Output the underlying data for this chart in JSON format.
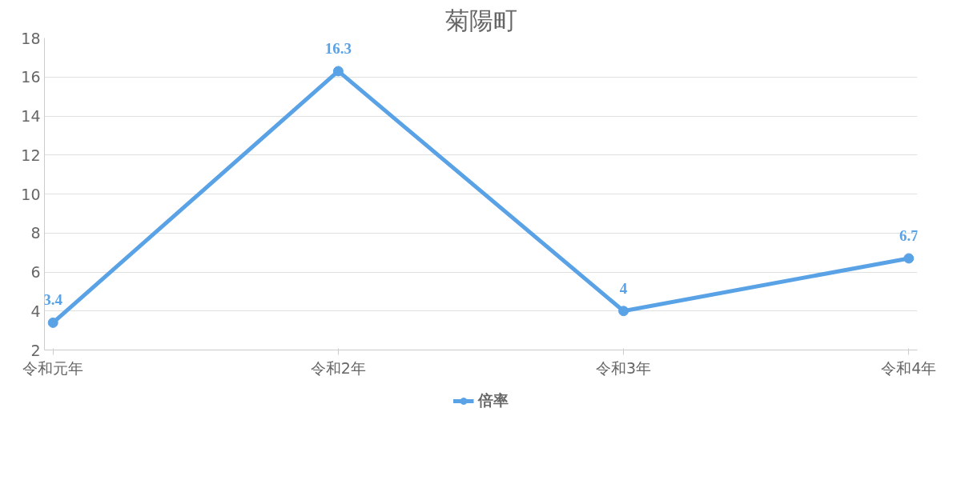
{
  "chart_data": {
    "type": "line",
    "title": "菊陽町",
    "categories": [
      "令和元年",
      "令和2年",
      "令和3年",
      "令和4年"
    ],
    "series": [
      {
        "name": "倍率",
        "color": "#5aa2e6",
        "values": [
          3.4,
          16.3,
          4,
          6.7
        ]
      }
    ],
    "ylim": [
      2,
      18
    ],
    "yticks": [
      2,
      4,
      6,
      8,
      10,
      12,
      14,
      16,
      18
    ],
    "grid": "y",
    "legend": "bottom",
    "marker": "circle",
    "data_labels": true
  }
}
